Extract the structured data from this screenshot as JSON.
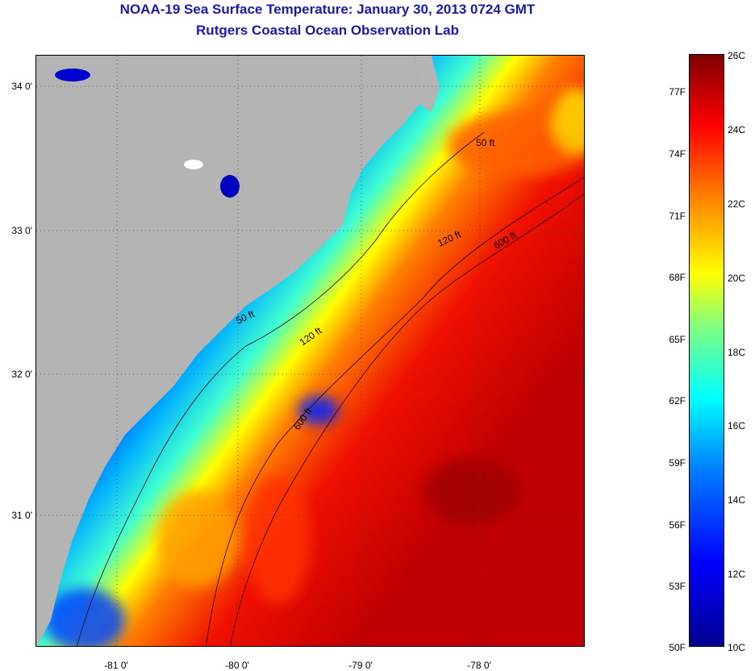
{
  "title_line1": "NOAA-19 Sea Surface Temperature:  January 30, 2013 0724 GMT",
  "title_line2": "Rutgers Coastal Ocean Observation Lab",
  "lat_labels": [
    "34 0'",
    "33 0'",
    "32 0'",
    "31 0'"
  ],
  "lon_labels": [
    "-81 0'",
    "-80 0'",
    "-79 0'",
    "-78 0'"
  ],
  "isobath_labels": [
    "50 ft",
    "50 ft",
    "120 ft",
    "120 ft",
    "600 ft",
    "600 ft"
  ],
  "colorbar": {
    "fahrenheit": [
      "77F",
      "74F",
      "71F",
      "68F",
      "65F",
      "62F",
      "59F",
      "56F",
      "53F",
      "50F"
    ],
    "celsius": [
      "26C",
      "24C",
      "22C",
      "20C",
      "18C",
      "16C",
      "14C",
      "12C",
      "10C"
    ]
  },
  "colors": {
    "land": "#b4b4b4",
    "title": "#1a1aa6",
    "cold": "#00008f",
    "warm": "#c80000"
  }
}
